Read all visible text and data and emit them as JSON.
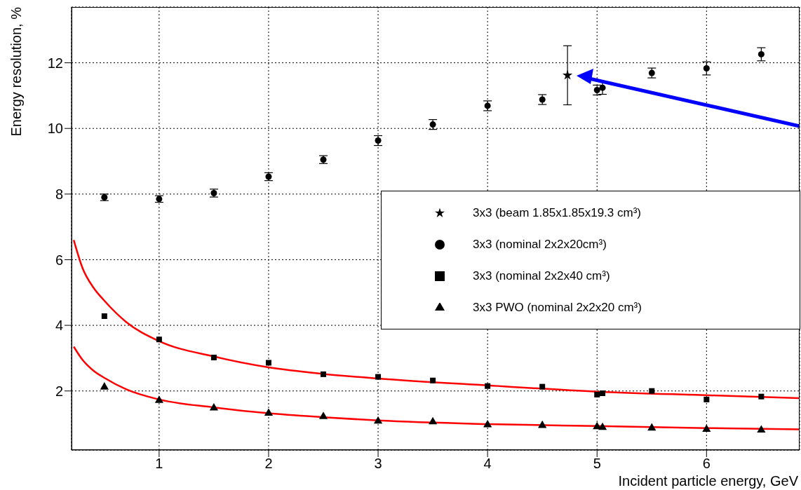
{
  "chart_data": {
    "type": "scatter",
    "xlabel": "Incident particle energy, GeV",
    "ylabel": "Energy resolution, %",
    "xlim": [
      0.2,
      6.85
    ],
    "xticks": [
      1,
      2,
      3,
      4,
      5,
      6
    ],
    "ylim": [
      0.2,
      13.7
    ],
    "yticks": [
      2,
      4,
      6,
      8,
      10,
      12
    ],
    "grid": true,
    "legend": "right",
    "series": [
      {
        "name": "3x3 (nominal 2x2x20cm³)",
        "type": "scatter",
        "marker": "circle",
        "color": "#000000",
        "x": [
          0.5,
          1,
          1.5,
          2,
          2.5,
          3,
          3.5,
          4,
          4.5,
          5,
          5.05,
          5.5,
          6,
          6.5
        ],
        "values": [
          7.9,
          7.85,
          8.03,
          8.53,
          9.05,
          9.63,
          10.12,
          10.69,
          10.88,
          11.17,
          11.24,
          11.69,
          11.83,
          12.26
        ],
        "errors": [
          0.1,
          0.1,
          0.12,
          0.12,
          0.12,
          0.15,
          0.15,
          0.15,
          0.15,
          0.15,
          0.2,
          0.15,
          0.2,
          0.2
        ]
      },
      {
        "name": "3x3 (nominal 2x2x40 cm³)",
        "type": "scatter",
        "marker": "square",
        "color": "#000000",
        "x": [
          0.5,
          1,
          1.5,
          2,
          2.5,
          3,
          3.5,
          4,
          4.5,
          5,
          5.05,
          5.5,
          6,
          6.5
        ],
        "values": [
          4.28,
          3.57,
          3.02,
          2.86,
          2.51,
          2.43,
          2.32,
          2.15,
          2.13,
          1.89,
          1.93,
          2.0,
          1.74,
          1.83
        ]
      },
      {
        "name": "3x3 PWO (nominal 2x2x20 cm³)",
        "type": "scatter",
        "marker": "triangle",
        "color": "#000000",
        "x": [
          0.5,
          1,
          1.5,
          2,
          2.5,
          3,
          3.5,
          4,
          4.5,
          5,
          5.05,
          5.5,
          6,
          6.5
        ],
        "values": [
          2.12,
          1.71,
          1.48,
          1.32,
          1.22,
          1.08,
          1.06,
          0.97,
          0.95,
          0.91,
          0.89,
          0.87,
          0.83,
          0.81
        ]
      },
      {
        "name": "3x3 (beam 1.85x1.85x19.3 cm³)",
        "type": "scatter",
        "marker": "star",
        "color": "#000000",
        "x": [
          4.73
        ],
        "values": [
          11.62
        ],
        "errors": [
          0.9
        ]
      },
      {
        "type": "line",
        "marker": "none",
        "color": "#ff0000",
        "x": [
          0.22,
          0.3,
          0.4,
          0.5,
          0.7,
          1,
          1.5,
          2,
          2.5,
          3,
          4,
          5,
          6,
          6.85
        ],
        "values": [
          6.6,
          5.75,
          5.15,
          4.75,
          4.1,
          3.52,
          3.05,
          2.72,
          2.52,
          2.38,
          2.17,
          1.98,
          1.87,
          1.78
        ]
      },
      {
        "type": "line",
        "marker": "none",
        "color": "#ff0000",
        "x": [
          0.22,
          0.3,
          0.4,
          0.5,
          0.7,
          1,
          1.5,
          2,
          2.5,
          3,
          4,
          5,
          6,
          6.85
        ],
        "values": [
          3.35,
          2.95,
          2.62,
          2.4,
          2.05,
          1.74,
          1.5,
          1.32,
          1.2,
          1.1,
          0.99,
          0.93,
          0.87,
          0.83
        ]
      }
    ]
  }
}
